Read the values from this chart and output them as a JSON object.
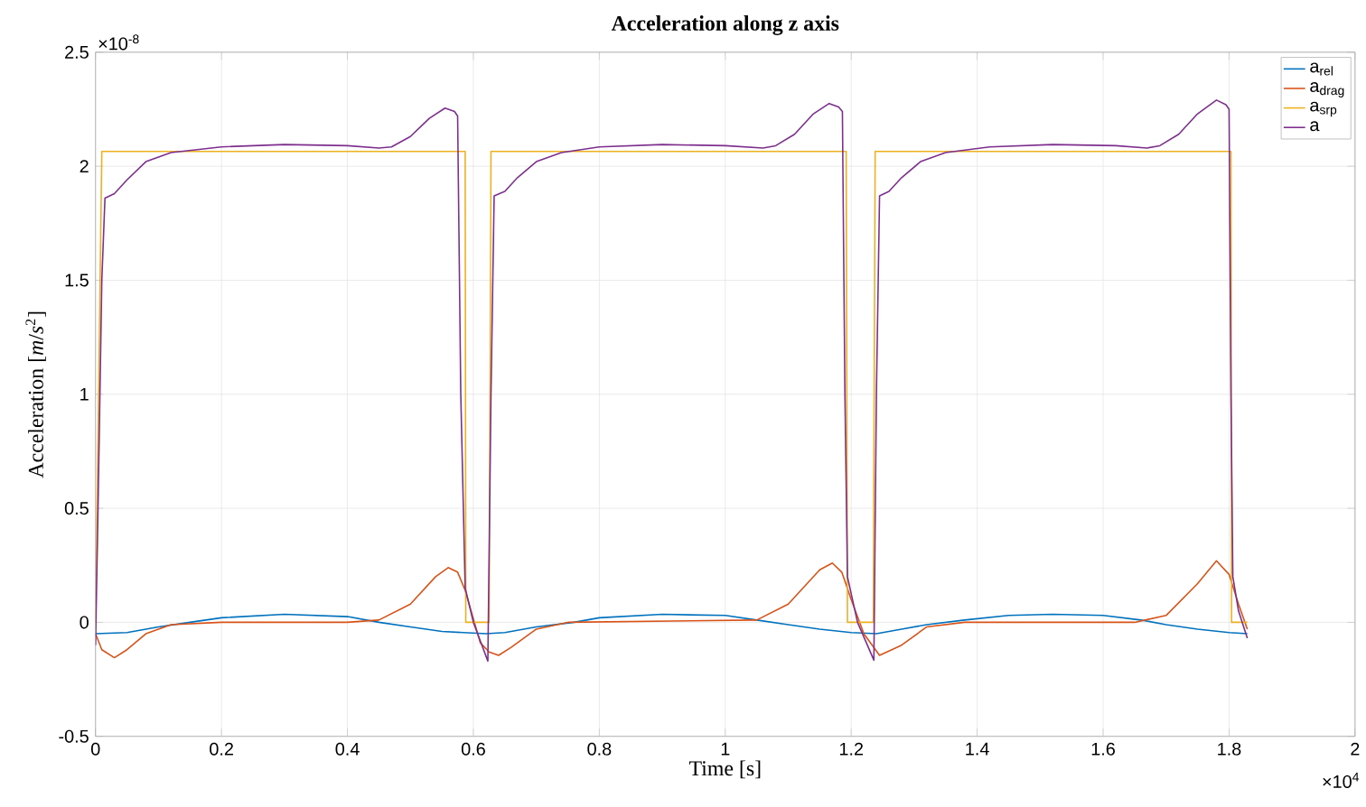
{
  "chart_data": {
    "type": "line",
    "title": "Acceleration along z axis",
    "xlabel": "Time [s]",
    "ylabel": "Acceleration [*m*/*s*$^{2}$]",
    "xlim": [
      0,
      2
    ],
    "ylim": [
      -0.5,
      2.5
    ],
    "xticks": [
      0,
      0.2,
      0.4,
      0.6,
      0.8,
      1,
      1.2,
      1.4,
      1.6,
      1.8,
      2
    ],
    "yticks": [
      -0.5,
      0,
      0.5,
      1,
      1.5,
      2,
      2.5
    ],
    "grid": true,
    "legend": "top right",
    "marker": "none",
    "line_style": "solid",
    "annotations": [
      "×10$^{-8}$",
      "×10$^{4}$"
    ],
    "series": [
      {
        "name": "a$_{rel}$",
        "color": "#0072bd",
        "x": [
          0,
          0.05,
          0.1,
          0.15,
          0.2,
          0.3,
          0.4,
          0.45,
          0.5,
          0.55,
          0.62,
          0.65,
          0.7,
          0.76,
          0.8,
          0.9,
          1.0,
          1.05,
          1.1,
          1.15,
          1.2,
          1.24,
          1.28,
          1.32,
          1.38,
          1.45,
          1.52,
          1.6,
          1.66,
          1.7,
          1.75,
          1.8,
          1.829
        ],
        "values": [
          -0.05,
          -0.045,
          -0.02,
          0,
          0.02,
          0.035,
          0.025,
          0,
          -0.02,
          -0.04,
          -0.05,
          -0.045,
          -0.02,
          0,
          0.02,
          0.035,
          0.03,
          0.01,
          -0.01,
          -0.03,
          -0.045,
          -0.05,
          -0.03,
          -0.01,
          0.01,
          0.03,
          0.035,
          0.03,
          0.01,
          -0.01,
          -0.03,
          -0.045,
          -0.05
        ]
      },
      {
        "name": "a$_{drag}$",
        "color": "#d95319",
        "x": [
          0,
          0.01,
          0.03,
          0.05,
          0.08,
          0.12,
          0.2,
          0.4,
          0.45,
          0.5,
          0.54,
          0.56,
          0.575,
          0.587,
          0.611,
          0.625,
          0.64,
          0.66,
          0.7,
          0.75,
          1.05,
          1.1,
          1.15,
          1.17,
          1.185,
          1.2,
          1.22,
          1.245,
          1.28,
          1.32,
          1.38,
          1.65,
          1.7,
          1.75,
          1.78,
          1.8,
          1.815,
          1.829
        ],
        "values": [
          -0.05,
          -0.12,
          -0.155,
          -0.12,
          -0.05,
          -0.01,
          0,
          0,
          0.01,
          0.08,
          0.2,
          0.24,
          0.22,
          0.14,
          -0.09,
          -0.13,
          -0.145,
          -0.11,
          -0.03,
          0,
          0.01,
          0.08,
          0.23,
          0.26,
          0.22,
          0.1,
          -0.05,
          -0.145,
          -0.1,
          -0.02,
          0,
          0,
          0.03,
          0.17,
          0.27,
          0.21,
          0.08,
          -0.03
        ]
      },
      {
        "name": "a$_{srp}$",
        "color": "#edb120",
        "x": [
          0,
          0.01,
          0.587,
          0.588,
          0.625,
          0.628,
          1.192,
          1.194,
          1.235,
          1.238,
          1.803,
          1.804,
          1.829
        ],
        "values": [
          0,
          2.065,
          2.065,
          0,
          0,
          2.065,
          2.065,
          0,
          0,
          2.065,
          2.065,
          0,
          0
        ]
      },
      {
        "name": "a",
        "color": "#7e2f8e",
        "x": [
          0,
          0.004,
          0.01,
          0.015,
          0.03,
          0.05,
          0.08,
          0.12,
          0.2,
          0.3,
          0.4,
          0.45,
          0.47,
          0.5,
          0.53,
          0.555,
          0.57,
          0.575,
          0.58,
          0.587,
          0.6,
          0.623,
          0.628,
          0.633,
          0.65,
          0.67,
          0.7,
          0.74,
          0.8,
          0.9,
          1.0,
          1.06,
          1.08,
          1.11,
          1.14,
          1.165,
          1.18,
          1.186,
          1.19,
          1.194,
          1.21,
          1.236,
          1.24,
          1.245,
          1.26,
          1.28,
          1.31,
          1.35,
          1.42,
          1.52,
          1.62,
          1.67,
          1.69,
          1.72,
          1.75,
          1.78,
          1.795,
          1.8,
          1.803,
          1.806,
          1.815,
          1.829
        ],
        "values": [
          -0.1,
          0.5,
          1.5,
          1.86,
          1.88,
          1.94,
          2.02,
          2.06,
          2.085,
          2.095,
          2.09,
          2.08,
          2.085,
          2.13,
          2.21,
          2.255,
          2.24,
          2.22,
          1.0,
          0.15,
          0,
          -0.17,
          1.0,
          1.87,
          1.89,
          1.95,
          2.02,
          2.06,
          2.085,
          2.095,
          2.09,
          2.08,
          2.09,
          2.14,
          2.23,
          2.275,
          2.26,
          2.24,
          1.0,
          0.2,
          0,
          -0.166,
          1.0,
          1.87,
          1.89,
          1.95,
          2.02,
          2.06,
          2.085,
          2.095,
          2.09,
          2.08,
          2.09,
          2.14,
          2.23,
          2.29,
          2.27,
          2.25,
          1.0,
          0.2,
          0.05,
          -0.07
        ]
      }
    ]
  }
}
